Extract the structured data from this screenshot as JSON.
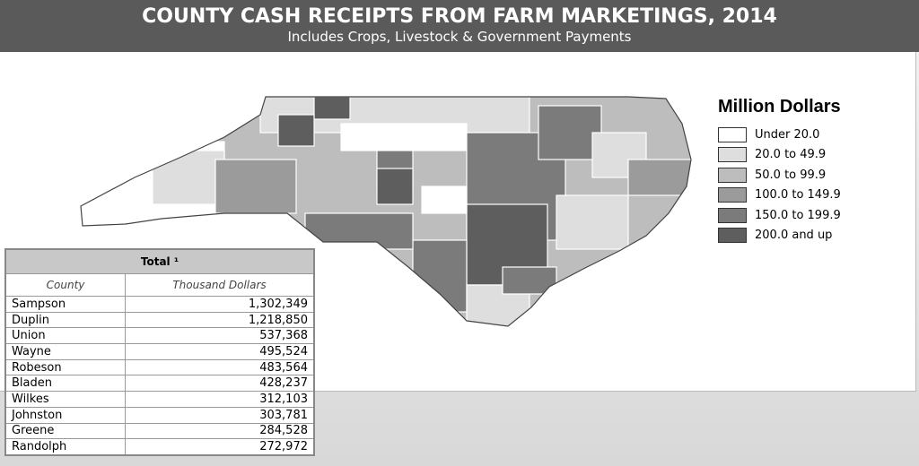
{
  "header": {
    "title": "COUNTY CASH RECEIPTS FROM FARM MARKETINGS, 2014",
    "subtitle": "Includes Crops, Livestock & Government Payments"
  },
  "legend": {
    "title": "Million Dollars",
    "items": [
      {
        "label": "Under 20.0",
        "color": "#ffffff"
      },
      {
        "label": "20.0 to 49.9",
        "color": "#dedede"
      },
      {
        "label": "50.0 to 99.9",
        "color": "#bdbdbd"
      },
      {
        "label": "100.0 to 149.9",
        "color": "#9b9b9b"
      },
      {
        "label": "150.0 to 199.9",
        "color": "#7b7b7b"
      },
      {
        "label": "200.0 and up",
        "color": "#5e5e5e"
      }
    ]
  },
  "table": {
    "title": "Total ¹",
    "columns": [
      "County",
      "Thousand Dollars"
    ],
    "rows": [
      [
        "Sampson",
        "1,302,349"
      ],
      [
        "Duplin",
        "1,218,850"
      ],
      [
        "Union",
        "537,368"
      ],
      [
        "Wayne",
        "495,524"
      ],
      [
        "Robeson",
        "483,564"
      ],
      [
        "Bladen",
        "428,237"
      ],
      [
        "Wilkes",
        "312,103"
      ],
      [
        "Johnston",
        "303,781"
      ],
      [
        "Greene",
        "284,528"
      ],
      [
        "Randolph",
        "272,972"
      ]
    ]
  }
}
